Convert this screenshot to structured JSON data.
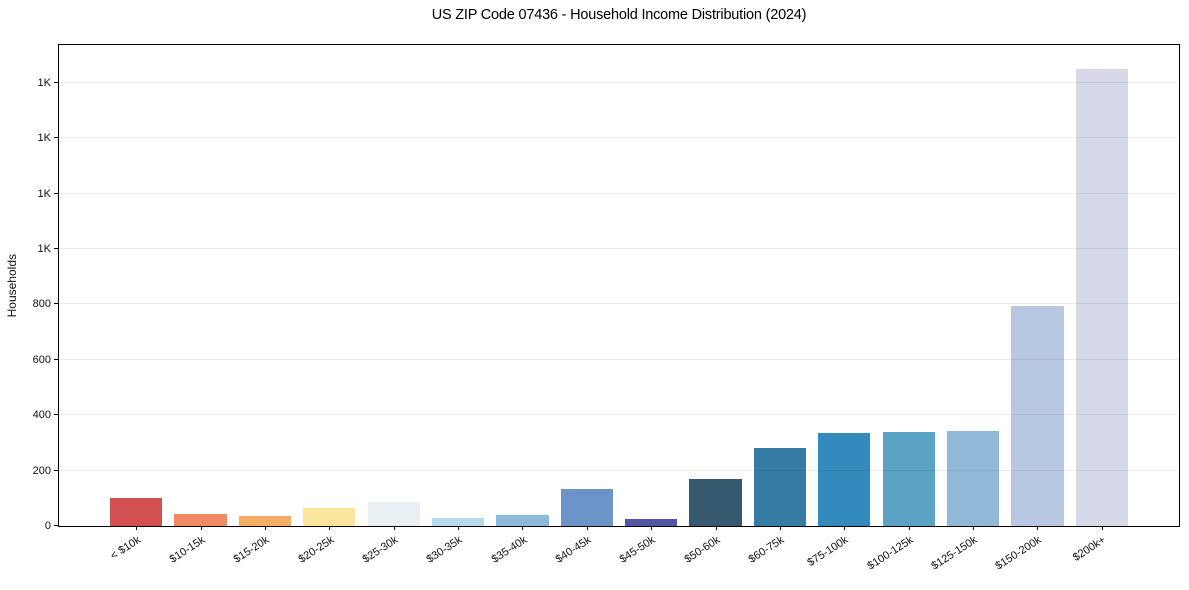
{
  "title": "US ZIP Code 07436 - Household Income Distribution (2024)",
  "chart_data": {
    "type": "bar",
    "title": "US ZIP Code 07436 - Household Income Distribution (2024)",
    "xlabel": "",
    "ylabel": "Households",
    "categories": [
      "< $10k",
      "$10-15k",
      "$15-20k",
      "$20-25k",
      "$25-30k",
      "$30-35k",
      "$35-40k",
      "$40-45k",
      "$45-50k",
      "$50-60k",
      "$60-75k",
      "$75-100k",
      "$100-125k",
      "$125-150k",
      "$150-200k",
      "$200k+"
    ],
    "values": [
      100,
      45,
      35,
      65,
      85,
      28,
      38,
      135,
      27,
      170,
      280,
      335,
      340,
      343,
      793,
      1650
    ],
    "bar_colors": [
      "#d25150",
      "#ef8a62",
      "#f5ad63",
      "#fbe49c",
      "#e9f1f4",
      "#b8d9e9",
      "#8dbad9",
      "#6b93c8",
      "#5356a8",
      "#355a70",
      "#357ba3",
      "#338abd",
      "#5ba3c4",
      "#92b8d8",
      "#b7c9e0",
      "#d7d9e8"
    ],
    "y_ticks": [
      {
        "value": 0,
        "label": "0"
      },
      {
        "value": 200,
        "label": "200"
      },
      {
        "value": 400,
        "label": "400"
      },
      {
        "value": 600,
        "label": "600"
      },
      {
        "value": 800,
        "label": "800"
      },
      {
        "value": 1000,
        "label": "1K"
      },
      {
        "value": 1200,
        "label": "1K"
      },
      {
        "value": 1400,
        "label": "1K"
      },
      {
        "value": 1600,
        "label": "1K"
      }
    ],
    "ylim": [
      0,
      1737
    ],
    "grid": "horizontal",
    "legend": "none"
  }
}
